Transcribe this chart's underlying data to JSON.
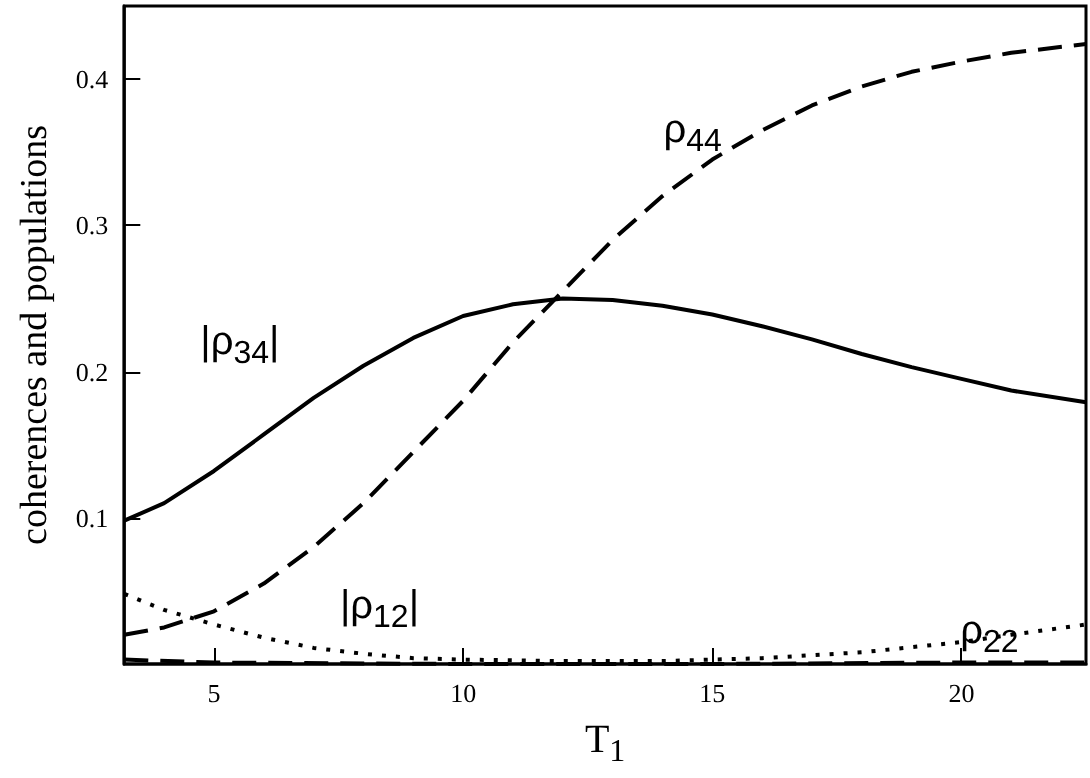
{
  "chart_data": {
    "type": "line",
    "xlabel": "T$_{1}$",
    "ylabel": "coherences and populations",
    "xlim": [
      3.2,
      22.5
    ],
    "xticks": [
      5,
      10,
      15,
      20
    ],
    "ylim": [
      0,
      0.45
    ],
    "yticks": [
      0.1,
      0.2,
      0.3,
      0.4
    ],
    "grid": false,
    "legend": false,
    "marker": "none",
    "series": [
      {
        "name": "|ρ$_{34}$|",
        "color": "#000000",
        "line_style": "solid",
        "x": [
          3.2,
          4,
          5,
          6,
          7,
          8,
          9,
          10,
          11,
          12,
          13,
          14,
          15,
          16,
          17,
          18,
          19,
          20,
          21,
          22.5
        ],
        "values": [
          0.098,
          0.11,
          0.132,
          0.157,
          0.182,
          0.204,
          0.223,
          0.238,
          0.246,
          0.25,
          0.249,
          0.245,
          0.239,
          0.231,
          0.222,
          0.212,
          0.203,
          0.195,
          0.187,
          0.179
        ]
      },
      {
        "name": "ρ$_{44}$",
        "color": "#000000",
        "line_style": "dashed",
        "x": [
          3.2,
          4,
          5,
          6,
          7,
          8,
          9,
          10,
          11,
          12,
          13,
          14,
          15,
          16,
          17,
          18,
          19,
          20,
          21,
          22.5
        ],
        "values": [
          0.02,
          0.025,
          0.036,
          0.055,
          0.08,
          0.11,
          0.145,
          0.18,
          0.22,
          0.255,
          0.29,
          0.32,
          0.345,
          0.365,
          0.382,
          0.395,
          0.405,
          0.412,
          0.418,
          0.424
        ]
      },
      {
        "name": "|ρ$_{12}$|",
        "color": "#000000",
        "line_style": "dotted",
        "x": [
          3.2,
          4,
          5,
          6,
          7,
          8,
          9,
          10,
          12,
          14,
          16,
          18,
          20,
          21,
          22.5
        ],
        "values": [
          0.048,
          0.037,
          0.027,
          0.018,
          0.011,
          0.007,
          0.004,
          0.003,
          0.002,
          0.002,
          0.004,
          0.008,
          0.015,
          0.02,
          0.027
        ]
      },
      {
        "name": "ρ$_{22}$",
        "color": "#000000",
        "line_style": "dashed",
        "x": [
          3.2,
          5,
          10,
          15,
          20,
          22.5
        ],
        "values": [
          0.003,
          0.001,
          0.0,
          0.0,
          0.001,
          0.001
        ]
      }
    ]
  }
}
